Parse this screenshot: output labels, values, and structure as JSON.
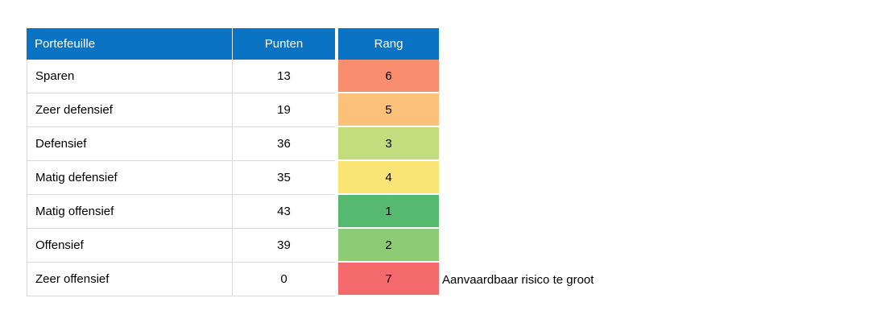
{
  "chart_data": {
    "type": "table",
    "title": "",
    "columns": [
      "Portefeuille",
      "Punten",
      "Rang"
    ],
    "rows": [
      {
        "portefeuille": "Sparen",
        "punten": 13,
        "rang": 6,
        "rang_color": "#F98E6E"
      },
      {
        "portefeuille": "Zeer defensief",
        "punten": 19,
        "rang": 5,
        "rang_color": "#FBC07A"
      },
      {
        "portefeuille": "Defensief",
        "punten": 36,
        "rang": 3,
        "rang_color": "#C2DC7E"
      },
      {
        "portefeuille": "Matig defensief",
        "punten": 35,
        "rang": 4,
        "rang_color": "#FBE476"
      },
      {
        "portefeuille": "Matig offensief",
        "punten": 43,
        "rang": 1,
        "rang_color": "#56B96F"
      },
      {
        "portefeuille": "Offensief",
        "punten": 39,
        "rang": 2,
        "rang_color": "#8DCC74"
      },
      {
        "portefeuille": "Zeer offensief",
        "punten": 0,
        "rang": 7,
        "rang_color": "#F4696C"
      }
    ],
    "annotation": "Aanvaardbaar risico te groot",
    "annotation_applies_to": "Zeer offensief",
    "header_bg": "#0B73C4",
    "header_text_color": "#FFFFFF",
    "grid_line_color": "#D9D9D9"
  }
}
